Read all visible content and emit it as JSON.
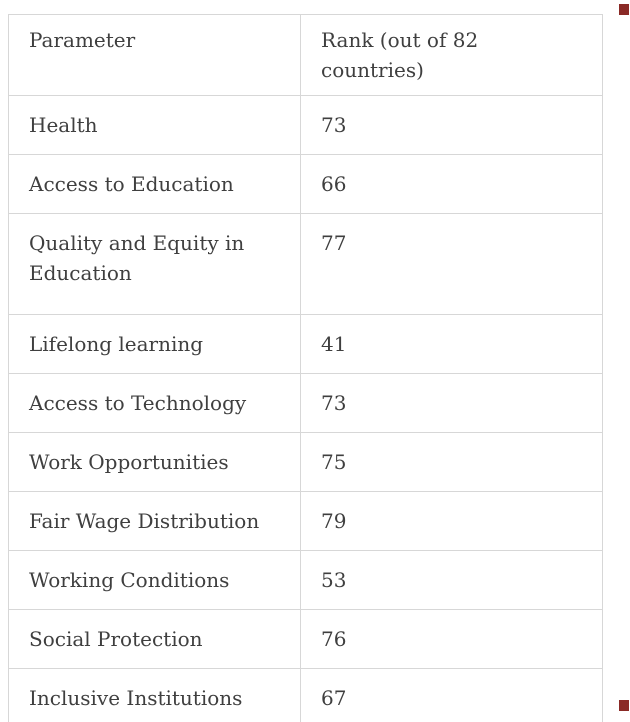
{
  "page": {
    "background_color": "#ffffff",
    "text_color": "#3f3f3f",
    "border_color": "#d7d7d7"
  },
  "table": {
    "columns": [
      "Parameter",
      "Rank (out of 82 countries)"
    ],
    "rows": [
      {
        "parameter": "Health",
        "rank": "73"
      },
      {
        "parameter": "Access to Education",
        "rank": "66"
      },
      {
        "parameter": "Quality and Equity in Education",
        "rank": "77"
      },
      {
        "parameter": "Lifelong learning",
        "rank": "41"
      },
      {
        "parameter": "Access to Technology",
        "rank": "73"
      },
      {
        "parameter": "Work Opportunities",
        "rank": "75"
      },
      {
        "parameter": "Fair Wage Distribution",
        "rank": "79"
      },
      {
        "parameter": "Working Conditions",
        "rank": "53"
      },
      {
        "parameter": "Social Protection",
        "rank": "76"
      },
      {
        "parameter": "Inclusive Institutions",
        "rank": "67"
      }
    ]
  },
  "scrollbar": {
    "fragment_color": "#8a2a26"
  },
  "chart_data": {
    "type": "table",
    "title": "",
    "columns": [
      "Parameter",
      "Rank (out of 82 countries)"
    ],
    "categories": [
      "Health",
      "Access to Education",
      "Quality and Equity in Education",
      "Lifelong learning",
      "Access to Technology",
      "Work Opportunities",
      "Fair Wage Distribution",
      "Working Conditions",
      "Social Protection",
      "Inclusive Institutions"
    ],
    "values": [
      73,
      66,
      77,
      41,
      73,
      75,
      79,
      53,
      76,
      67
    ],
    "rank_out_of": 82
  }
}
